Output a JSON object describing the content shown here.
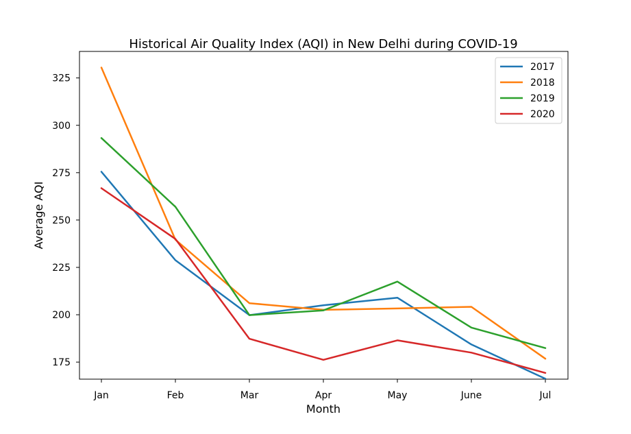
{
  "chart_data": {
    "type": "line",
    "title": "Historical Air Quality Index (AQI) in New Delhi during COVID-19",
    "xlabel": "Month",
    "ylabel": "Average AQI",
    "categories": [
      "Jan",
      "Feb",
      "Mar",
      "Apr",
      "May",
      "June",
      "Jul"
    ],
    "ylim": [
      166,
      339
    ],
    "yticks": [
      175,
      200,
      225,
      250,
      275,
      300,
      325
    ],
    "grid": false,
    "legend_position": "top-right",
    "series": [
      {
        "name": "2017",
        "color": "#1f77b4",
        "values": [
          275.5,
          228.8,
          199.8,
          205.0,
          209.0,
          184.3,
          166.2
        ]
      },
      {
        "name": "2018",
        "color": "#ff7f0e",
        "values": [
          330.5,
          239.6,
          206.1,
          202.6,
          203.3,
          204.2,
          176.8
        ]
      },
      {
        "name": "2019",
        "color": "#2ca02c",
        "values": [
          293.3,
          257.0,
          199.8,
          202.3,
          217.5,
          193.2,
          182.4
        ]
      },
      {
        "name": "2020",
        "color": "#d62728",
        "values": [
          266.8,
          240.0,
          187.3,
          176.2,
          186.5,
          180.0,
          169.3
        ]
      }
    ]
  }
}
